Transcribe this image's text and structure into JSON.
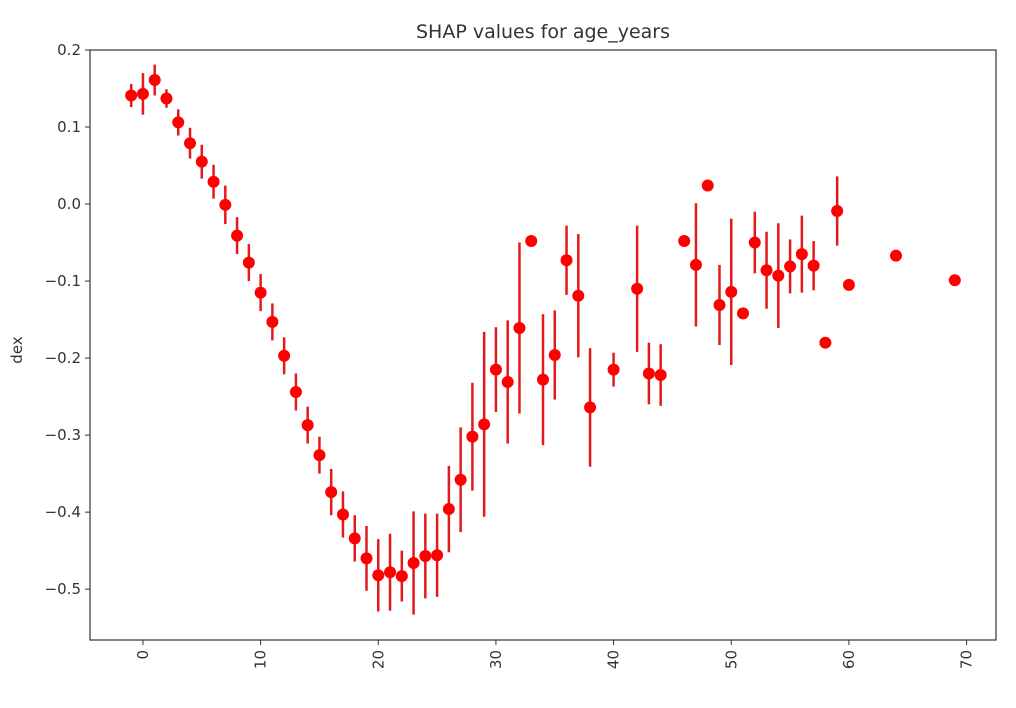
{
  "chart_data": {
    "type": "scatter",
    "title": "SHAP values for age_years",
    "xlabel": "",
    "ylabel": "dex",
    "xlim": [
      -4.5,
      72.5
    ],
    "ylim": [
      -0.566,
      0.2
    ],
    "xticks": [
      0,
      10,
      20,
      30,
      40,
      50,
      60,
      70
    ],
    "yticks": [
      0.2,
      0.1,
      0.0,
      -0.1,
      -0.2,
      -0.3,
      -0.4,
      -0.5
    ],
    "ytick_labels": [
      "0.2",
      "0.1",
      "0.0",
      "−0.1",
      "−0.2",
      "−0.3",
      "−0.4",
      "−0.5"
    ],
    "xtick_rotation": -90,
    "grid": false,
    "marker_color": "#ff0000",
    "errorbar_color": "#e31a1c",
    "points": [
      {
        "x": -1,
        "y": 0.141,
        "err": 0.015
      },
      {
        "x": 0,
        "y": 0.143,
        "err": 0.027
      },
      {
        "x": 1,
        "y": 0.161,
        "err": 0.02
      },
      {
        "x": 2,
        "y": 0.137,
        "err": 0.012
      },
      {
        "x": 3,
        "y": 0.106,
        "err": 0.017
      },
      {
        "x": 4,
        "y": 0.079,
        "err": 0.02
      },
      {
        "x": 5,
        "y": 0.055,
        "err": 0.022
      },
      {
        "x": 6,
        "y": 0.029,
        "err": 0.022
      },
      {
        "x": 7,
        "y": -0.001,
        "err": 0.025
      },
      {
        "x": 8,
        "y": -0.041,
        "err": 0.024
      },
      {
        "x": 9,
        "y": -0.076,
        "err": 0.024
      },
      {
        "x": 10,
        "y": -0.115,
        "err": 0.024
      },
      {
        "x": 11,
        "y": -0.153,
        "err": 0.024
      },
      {
        "x": 12,
        "y": -0.197,
        "err": 0.024
      },
      {
        "x": 13,
        "y": -0.244,
        "err": 0.024
      },
      {
        "x": 14,
        "y": -0.287,
        "err": 0.024
      },
      {
        "x": 15,
        "y": -0.326,
        "err": 0.024
      },
      {
        "x": 16,
        "y": -0.374,
        "err": 0.03
      },
      {
        "x": 17,
        "y": -0.403,
        "err": 0.03
      },
      {
        "x": 18,
        "y": -0.434,
        "err": 0.03
      },
      {
        "x": 19,
        "y": -0.46,
        "err": 0.042
      },
      {
        "x": 20,
        "y": -0.482,
        "err": 0.047
      },
      {
        "x": 21,
        "y": -0.478,
        "err": 0.05
      },
      {
        "x": 22,
        "y": -0.483,
        "err": 0.033
      },
      {
        "x": 23,
        "y": -0.466,
        "err": 0.067
      },
      {
        "x": 24,
        "y": -0.457,
        "err": 0.055
      },
      {
        "x": 25,
        "y": -0.456,
        "err": 0.054
      },
      {
        "x": 26,
        "y": -0.396,
        "err": 0.056
      },
      {
        "x": 27,
        "y": -0.358,
        "err": 0.068
      },
      {
        "x": 28,
        "y": -0.302,
        "err": 0.07
      },
      {
        "x": 29,
        "y": -0.286,
        "err": 0.12
      },
      {
        "x": 30,
        "y": -0.215,
        "err": 0.055
      },
      {
        "x": 31,
        "y": -0.231,
        "err": 0.08
      },
      {
        "x": 32,
        "y": -0.161,
        "err": 0.111
      },
      {
        "x": 33,
        "y": -0.048,
        "err": 0
      },
      {
        "x": 34,
        "y": -0.228,
        "err": 0.085
      },
      {
        "x": 35,
        "y": -0.196,
        "err": 0.058
      },
      {
        "x": 36,
        "y": -0.073,
        "err": 0.045
      },
      {
        "x": 37,
        "y": -0.119,
        "err": 0.08
      },
      {
        "x": 38,
        "y": -0.264,
        "err": 0.077
      },
      {
        "x": 40,
        "y": -0.215,
        "err": 0.022
      },
      {
        "x": 42,
        "y": -0.11,
        "err": 0.082
      },
      {
        "x": 43,
        "y": -0.22,
        "err": 0.04
      },
      {
        "x": 44,
        "y": -0.222,
        "err": 0.04
      },
      {
        "x": 46,
        "y": -0.048,
        "err": 0
      },
      {
        "x": 47,
        "y": -0.079,
        "err": 0.08
      },
      {
        "x": 48,
        "y": 0.024,
        "err": 0
      },
      {
        "x": 49,
        "y": -0.131,
        "err": 0.052
      },
      {
        "x": 50,
        "y": -0.114,
        "err": 0.095
      },
      {
        "x": 51,
        "y": -0.142,
        "err": 0
      },
      {
        "x": 52,
        "y": -0.05,
        "err": 0.04
      },
      {
        "x": 53,
        "y": -0.086,
        "err": 0.05
      },
      {
        "x": 54,
        "y": -0.093,
        "err": 0.068
      },
      {
        "x": 55,
        "y": -0.081,
        "err": 0.035
      },
      {
        "x": 56,
        "y": -0.065,
        "err": 0.05
      },
      {
        "x": 57,
        "y": -0.08,
        "err": 0.032
      },
      {
        "x": 58,
        "y": -0.18,
        "err": 0
      },
      {
        "x": 59,
        "y": -0.009,
        "err": 0.045
      },
      {
        "x": 60,
        "y": -0.105,
        "err": 0
      },
      {
        "x": 64,
        "y": -0.067,
        "err": 0
      },
      {
        "x": 69,
        "y": -0.099,
        "err": 0
      }
    ]
  }
}
